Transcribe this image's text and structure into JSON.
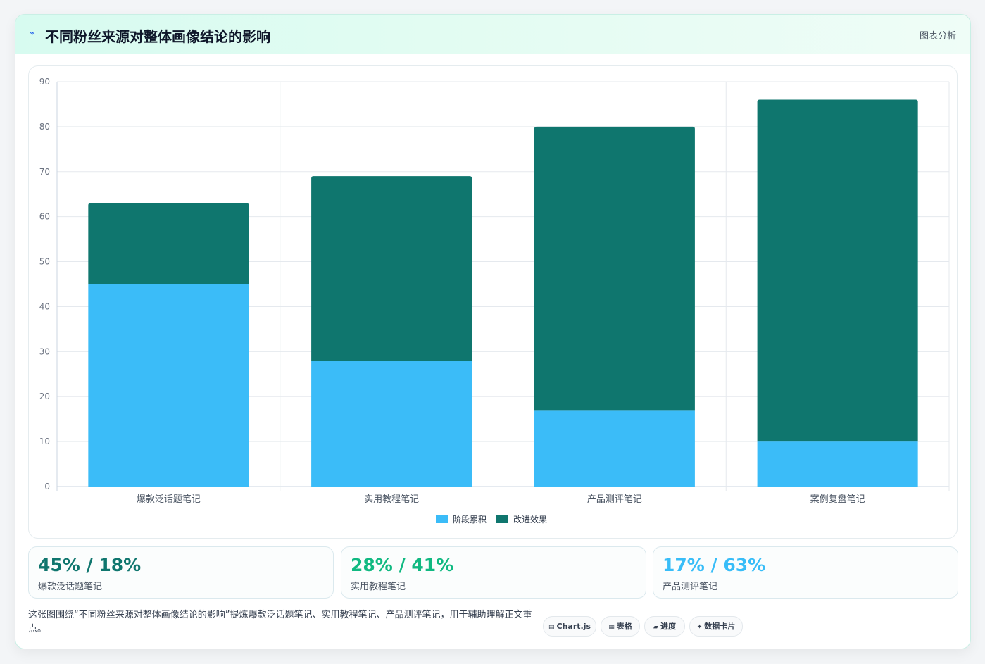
{
  "header": {
    "title": "不同粉丝来源对整体画像结论的影响",
    "tag": "图表分析"
  },
  "chart_data": {
    "type": "bar",
    "stacked": true,
    "categories": [
      "爆款泛话题笔记",
      "实用教程笔记",
      "产品测评笔记",
      "案例复盘笔记"
    ],
    "series": [
      {
        "name": "阶段累积",
        "values": [
          45,
          28,
          17,
          10
        ],
        "color": "#3bbcf8"
      },
      {
        "name": "改进效果",
        "values": [
          18,
          41,
          63,
          76
        ],
        "color": "#0f766e"
      }
    ],
    "ylim": [
      0,
      90
    ],
    "yticks": [
      0,
      10,
      20,
      30,
      40,
      50,
      60,
      70,
      80,
      90
    ],
    "grid": true,
    "legend_position": "bottom"
  },
  "stats": [
    {
      "value": "45% / 18%",
      "label": "爆款泛话题笔记",
      "color": "#0f766e"
    },
    {
      "value": "28% / 41%",
      "label": "实用教程笔记",
      "color": "#10b981"
    },
    {
      "value": "17% / 63%",
      "label": "产品测评笔记",
      "color": "#38bdf8"
    }
  ],
  "footnote": "这张图围绕“不同粉丝来源对整体画像结论的影响”提炼爆款泛话题笔记、实用教程笔记、产品测评笔记，用于辅助理解正文重点。",
  "pills": [
    {
      "icon": "▤",
      "label": "Chart.js"
    },
    {
      "icon": "▦",
      "label": "表格"
    },
    {
      "icon": "▰",
      "label": "进度"
    },
    {
      "icon": "✦",
      "label": "数据卡片"
    }
  ]
}
